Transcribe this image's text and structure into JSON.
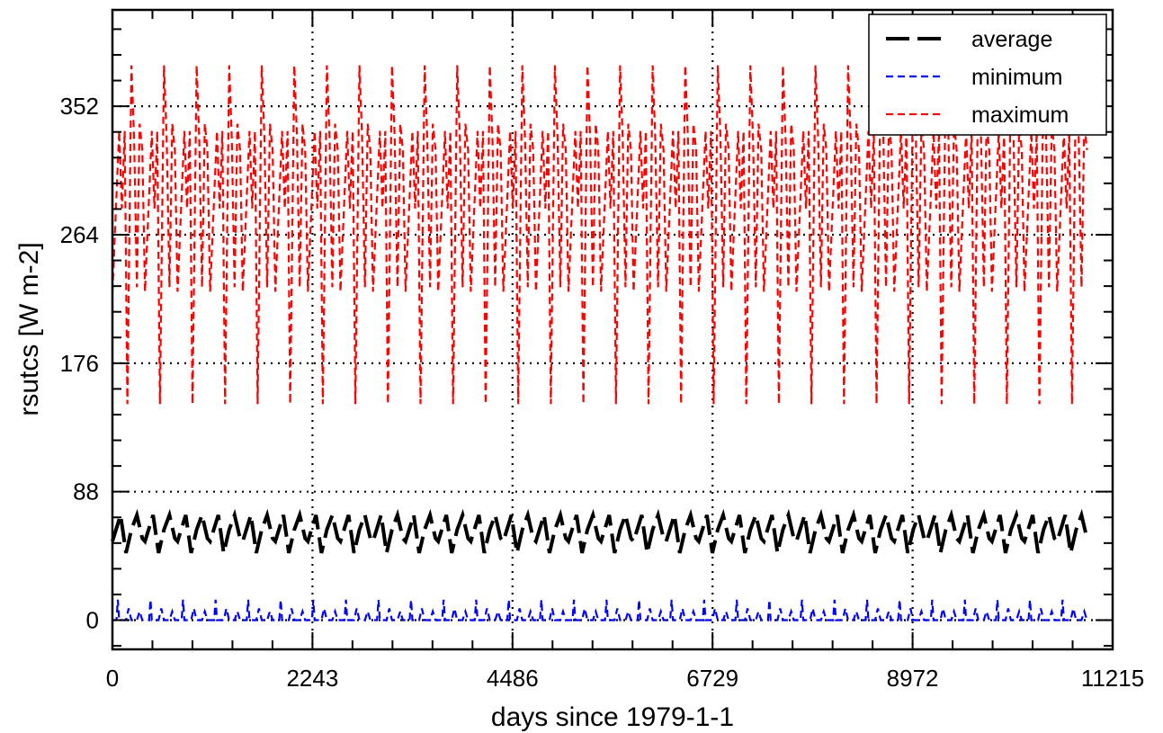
{
  "chart_data": {
    "type": "line",
    "title": "",
    "xlabel": "days since 1979-1-1",
    "ylabel": "rsutcs [W m-2]",
    "xlim": [
      0,
      11215
    ],
    "ylim": [
      -20,
      418
    ],
    "x_ticks": [
      0,
      2243,
      4486,
      6729,
      8972,
      11215
    ],
    "y_ticks": [
      0,
      88,
      176,
      264,
      352
    ],
    "x_tick_labels": [
      "0",
      "2243",
      "4486",
      "6729",
      "8972",
      "11215"
    ],
    "y_tick_labels": [
      "0",
      "88",
      "176",
      "264",
      "352"
    ],
    "x_grid_lines": [
      2243,
      4486,
      6729,
      8972
    ],
    "y_grid_lines": [
      0,
      88,
      176,
      264,
      352
    ],
    "x_minor_step": 448.6,
    "y_minor_step": 17.6,
    "grid": "dotted",
    "legend_position": "top-right",
    "period_days": 365.25,
    "n_years": 30,
    "series": [
      {
        "name": "average",
        "color": "#000000",
        "dash": "long",
        "cycle_x_offsets": [
          0,
          91,
          122,
          152,
          213,
          274,
          335
        ],
        "cycle_values": [
          54,
          72,
          59,
          46,
          62,
          72,
          56
        ]
      },
      {
        "name": "minimum",
        "color": "#0000ff",
        "dash": "short",
        "cycle_x_offsets": [
          0,
          45,
          61,
          76,
          152,
          182,
          213,
          274,
          305,
          335
        ],
        "cycle_values": [
          0,
          0,
          14,
          0,
          0,
          8,
          0,
          0,
          6,
          0
        ]
      },
      {
        "name": "maximum",
        "color": "#ff0000",
        "dash": "short",
        "cycle_x_offsets": [
          0,
          76,
          106,
          137,
          167,
          213,
          243,
          274,
          305,
          335
        ],
        "cycle_values": [
          225,
          335,
          282,
          335,
          148,
          380,
          330,
          228,
          340,
          322
        ]
      }
    ]
  }
}
